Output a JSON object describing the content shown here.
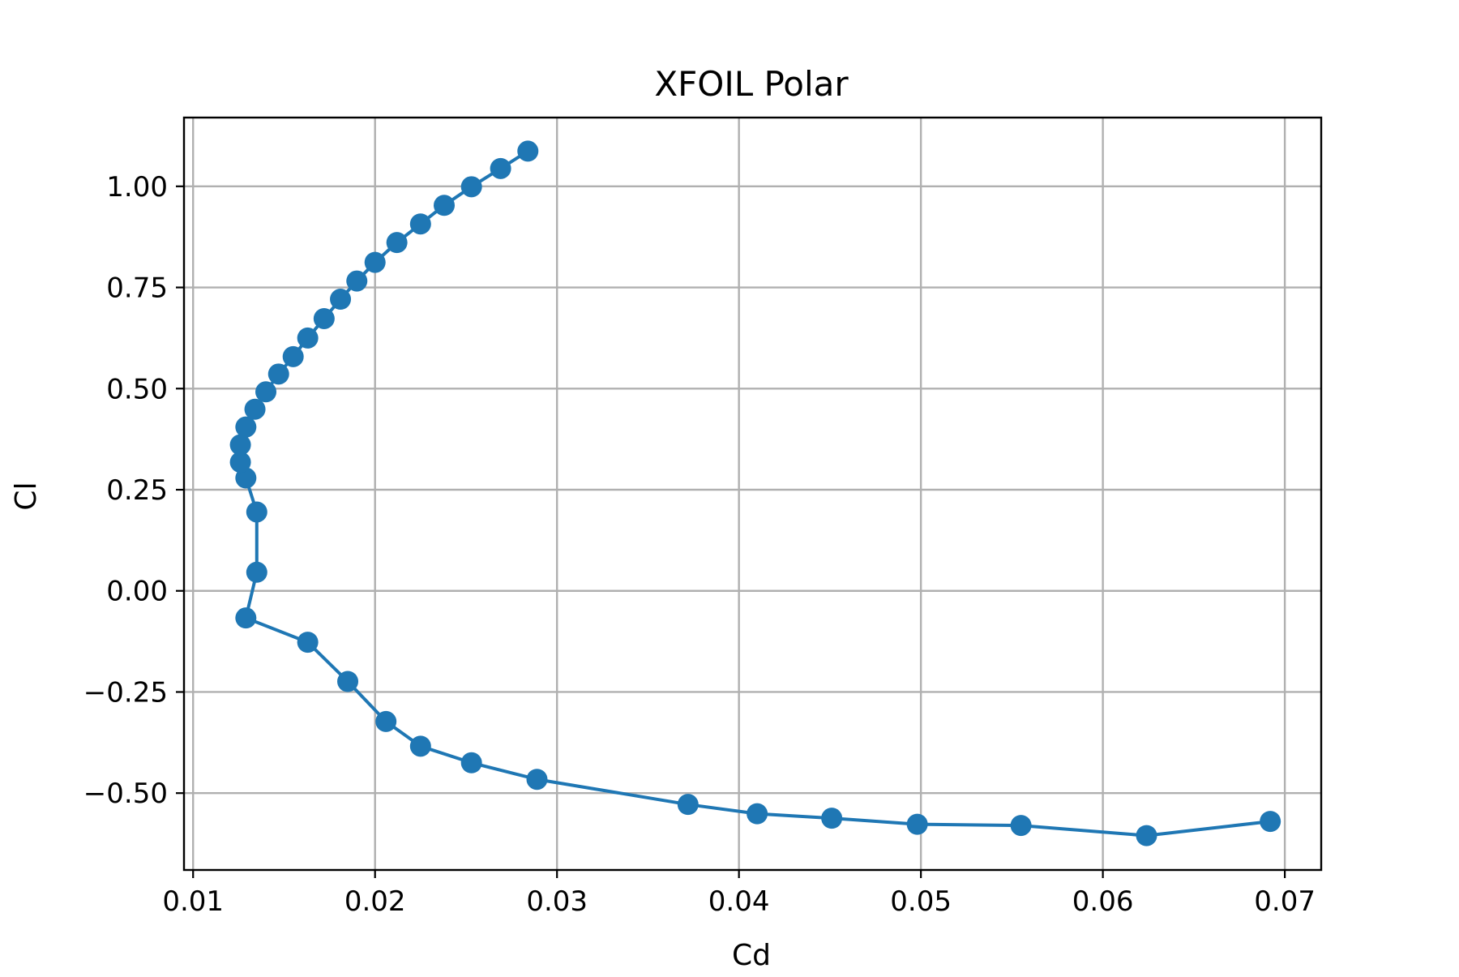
{
  "chart_data": {
    "type": "line",
    "title": "XFOIL Polar",
    "xlabel": "Cd",
    "ylabel": "Cl",
    "xlim": [
      0.0095,
      0.072
    ],
    "ylim": [
      -0.69,
      1.17
    ],
    "xticks": [
      0.01,
      0.02,
      0.03,
      0.04,
      0.05,
      0.06,
      0.07
    ],
    "xtick_labels": [
      "0.01",
      "0.02",
      "0.03",
      "0.04",
      "0.05",
      "0.06",
      "0.07"
    ],
    "yticks": [
      -0.5,
      -0.25,
      0.0,
      0.25,
      0.5,
      0.75,
      1.0
    ],
    "ytick_labels": [
      "−0.50",
      "−0.25",
      "0.00",
      "0.25",
      "0.50",
      "0.75",
      "1.00"
    ],
    "grid": true,
    "legend": "none",
    "marker": "circle",
    "series": [
      {
        "color": "#1f77b4",
        "x": [
          0.0692,
          0.0624,
          0.0555,
          0.0498,
          0.0451,
          0.041,
          0.0372,
          0.0289,
          0.0253,
          0.0225,
          0.0206,
          0.0185,
          0.0163,
          0.0129,
          0.0135,
          0.0135,
          0.0129,
          0.0126,
          0.0126,
          0.0129,
          0.0134,
          0.014,
          0.0147,
          0.0155,
          0.0163,
          0.0172,
          0.0181,
          0.019,
          0.02,
          0.0212,
          0.0225,
          0.0238,
          0.0253,
          0.0269,
          0.0284
        ],
        "y": [
          -0.57,
          -0.605,
          -0.58,
          -0.577,
          -0.562,
          -0.551,
          -0.528,
          -0.466,
          -0.425,
          -0.384,
          -0.323,
          -0.224,
          -0.127,
          -0.067,
          0.046,
          0.195,
          0.279,
          0.318,
          0.361,
          0.405,
          0.449,
          0.492,
          0.536,
          0.579,
          0.625,
          0.673,
          0.721,
          0.766,
          0.812,
          0.861,
          0.907,
          0.953,
          0.999,
          1.044,
          1.087
        ]
      }
    ]
  }
}
